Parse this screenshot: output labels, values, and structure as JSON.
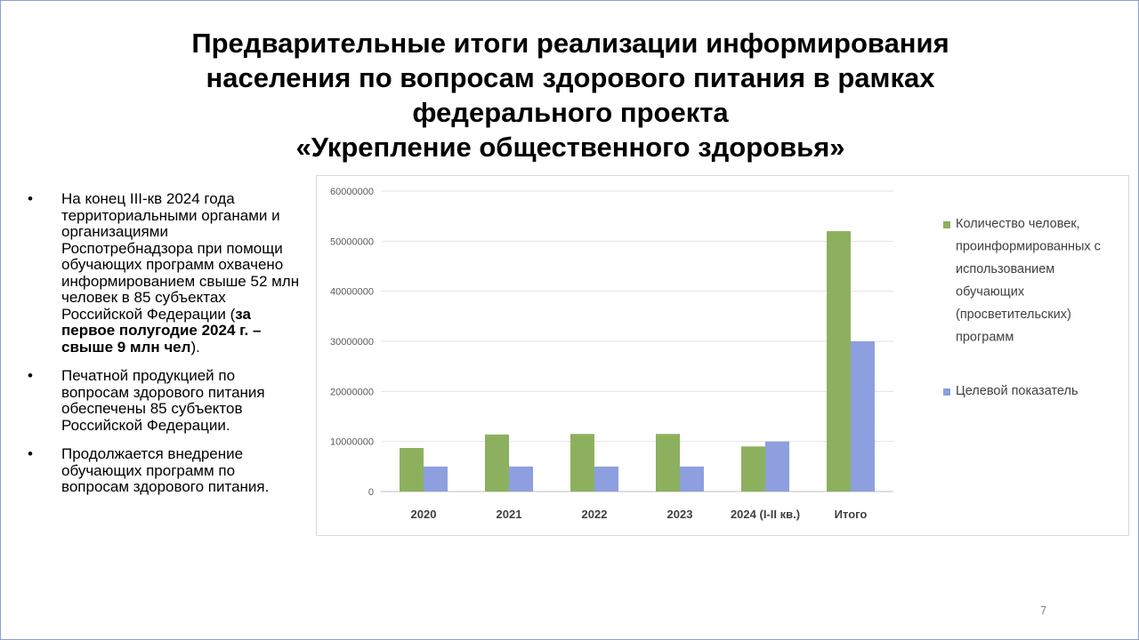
{
  "slide": {
    "title_lines": [
      "Предварительные итоги реализации информирования",
      "населения по вопросам здорового питания в рамках",
      "федерального проекта",
      "«Укрепление общественного здоровья»"
    ],
    "bullets": [
      {
        "text": "На конец III-кв 2024 года территориальными органами и организациями Роспотребнадзора при помощи обучающих программ охвачено информированием свыше 52 млн человек в 85 субъектах Российской Федерации (",
        "bold": "за первое полугодие 2024 г. – свыше 9 млн чел",
        "tail": ")."
      },
      {
        "text": "Печатной продукцией по вопросам здорового питания обеспечены 85 субъектов Российской Федерации."
      },
      {
        "text": "Продолжается внедрение обучающих программ по вопросам здорового питания."
      }
    ],
    "bullet_symbol": "•",
    "page_number": "7"
  },
  "chart_data": {
    "type": "bar",
    "categories": [
      "2020",
      "2021",
      "2022",
      "2023",
      "2024 (I-II кв.)",
      "Итого"
    ],
    "series": [
      {
        "name": "Количество человек, проинформированных с использованием обучающих (просветительских) программ",
        "legend_lines": [
          "Количество человек,",
          "проинформированных с",
          "использованием",
          "обучающих",
          "(просветительских)",
          "программ"
        ],
        "values": [
          8700000,
          11400000,
          11500000,
          11500000,
          9000000,
          52000000
        ],
        "color": "#8db05f"
      },
      {
        "name": "Целевой показатель",
        "legend_lines": [
          "Целевой показатель"
        ],
        "values": [
          5000000,
          5000000,
          5000000,
          5000000,
          10000000,
          30000000
        ],
        "color": "#8d9fdf"
      }
    ],
    "ylim": [
      0,
      60000000
    ],
    "yticks": [
      "0",
      "10000000",
      "20000000",
      "30000000",
      "40000000",
      "50000000",
      "60000000"
    ],
    "grid": true,
    "legend_position": "right"
  }
}
